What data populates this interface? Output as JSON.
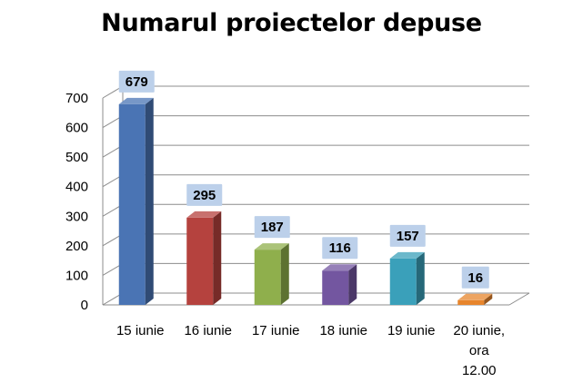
{
  "chart_data": {
    "type": "bar",
    "title": "Numarul proiectelor depuse",
    "xlabel": "",
    "ylabel": "",
    "categories": [
      "15 iunie",
      "16 iunie",
      "17 iunie",
      "18 iunie",
      "19 iunie",
      "20 iunie, ora 12.00"
    ],
    "category_lines": [
      [
        "15 iunie"
      ],
      [
        "16 iunie"
      ],
      [
        "17 iunie"
      ],
      [
        "18 iunie"
      ],
      [
        "19 iunie"
      ],
      [
        "20 iunie,",
        "ora",
        "12.00"
      ]
    ],
    "values": [
      679,
      295,
      187,
      116,
      157,
      16
    ],
    "data_labels": [
      "679",
      "295",
      "187",
      "116",
      "157",
      "16"
    ],
    "ylim": [
      0,
      700
    ],
    "yticks": [
      0,
      100,
      200,
      300,
      400,
      500,
      600,
      700
    ],
    "grid": true,
    "legend": "none",
    "style": "3d-column",
    "colors": [
      "#4A74B4",
      "#B5423E",
      "#8FAF4C",
      "#7356A0",
      "#3AA0BA",
      "#E7852C"
    ],
    "label_box_color": "#BCD0EA"
  }
}
